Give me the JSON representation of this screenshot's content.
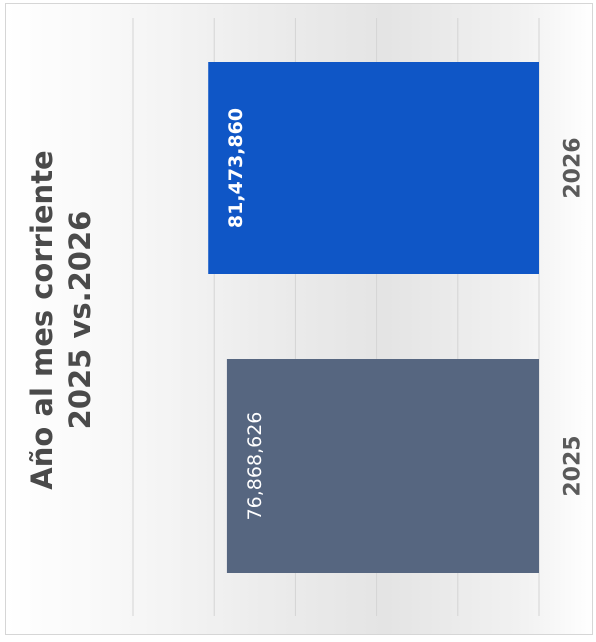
{
  "chart_data": {
    "type": "bar",
    "title": "Año al mes corriente",
    "subtitle": "2025 vs.2026",
    "categories": [
      "2025",
      "2026"
    ],
    "values": [
      76868626,
      81473860
    ],
    "value_labels": [
      "76,868,626",
      "81,473,860"
    ],
    "bar_colors": [
      "#566680",
      "#0f56c6"
    ],
    "value_label_colors": [
      "#ffffff",
      "#ffffff"
    ],
    "value_label_bold": [
      false,
      true
    ],
    "xlim": [
      0,
      100000000
    ],
    "grid": true,
    "orientation": "rotated"
  },
  "colors": {
    "title": "#4a4a4a",
    "category_label": "#5a5a5a",
    "gridline": "#d4d4d4"
  }
}
